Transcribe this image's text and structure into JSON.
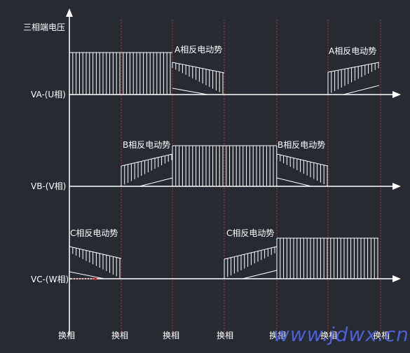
{
  "y_axis_title": "三相端电压",
  "rows": [
    {
      "label": "VA-(U相)",
      "emf_label": "A相反电动势"
    },
    {
      "label": "VB-(V相)",
      "emf_label": "B相反电动势"
    },
    {
      "label": "VC-(W相)",
      "emf_label": "C相反电动势"
    }
  ],
  "commutation_label": "换相",
  "watermark": "www.jdwx.cn",
  "colors": {
    "background": "#262a33",
    "axis": "#ffffff",
    "commutation_line": "#c8282d",
    "watermark": "#4d5fd6"
  }
}
